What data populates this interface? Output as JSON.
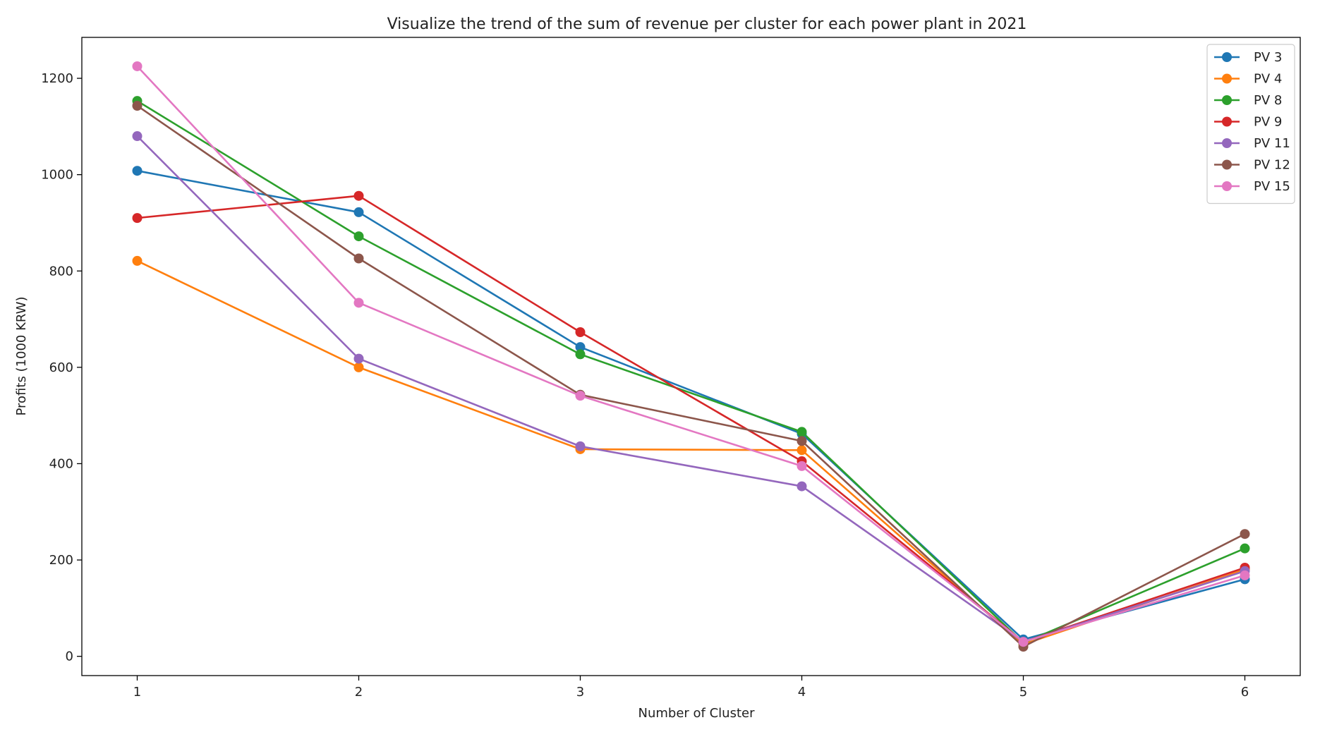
{
  "chart_data": {
    "type": "line",
    "title": "Visualize the trend of the sum of revenue per cluster for each power plant in 2021",
    "xlabel": "Number of Cluster",
    "ylabel": "Profits (1000 KRW)",
    "x": [
      1,
      2,
      3,
      4,
      5,
      6
    ],
    "xlim": [
      0.75,
      6.25
    ],
    "ylim": [
      -40,
      1285
    ],
    "yticks": [
      0,
      200,
      400,
      600,
      800,
      1000,
      1200
    ],
    "legend_position": "top-right",
    "series": [
      {
        "name": "PV 3",
        "color": "#1f77b4",
        "values": [
          1008,
          922,
          642,
          462,
          35,
          160
        ]
      },
      {
        "name": "PV 4",
        "color": "#ff7f0e",
        "values": [
          821,
          600,
          430,
          428,
          25,
          180
        ]
      },
      {
        "name": "PV 8",
        "color": "#2ca02c",
        "values": [
          1153,
          872,
          627,
          466,
          28,
          224
        ]
      },
      {
        "name": "PV 9",
        "color": "#d62728",
        "values": [
          910,
          956,
          673,
          405,
          30,
          184
        ]
      },
      {
        "name": "PV 11",
        "color": "#9467bd",
        "values": [
          1080,
          618,
          436,
          353,
          30,
          177
        ]
      },
      {
        "name": "PV 12",
        "color": "#8c564b",
        "values": [
          1143,
          826,
          543,
          447,
          20,
          254
        ]
      },
      {
        "name": "PV 15",
        "color": "#e377c2",
        "values": [
          1225,
          734,
          541,
          395,
          30,
          168
        ]
      }
    ]
  }
}
